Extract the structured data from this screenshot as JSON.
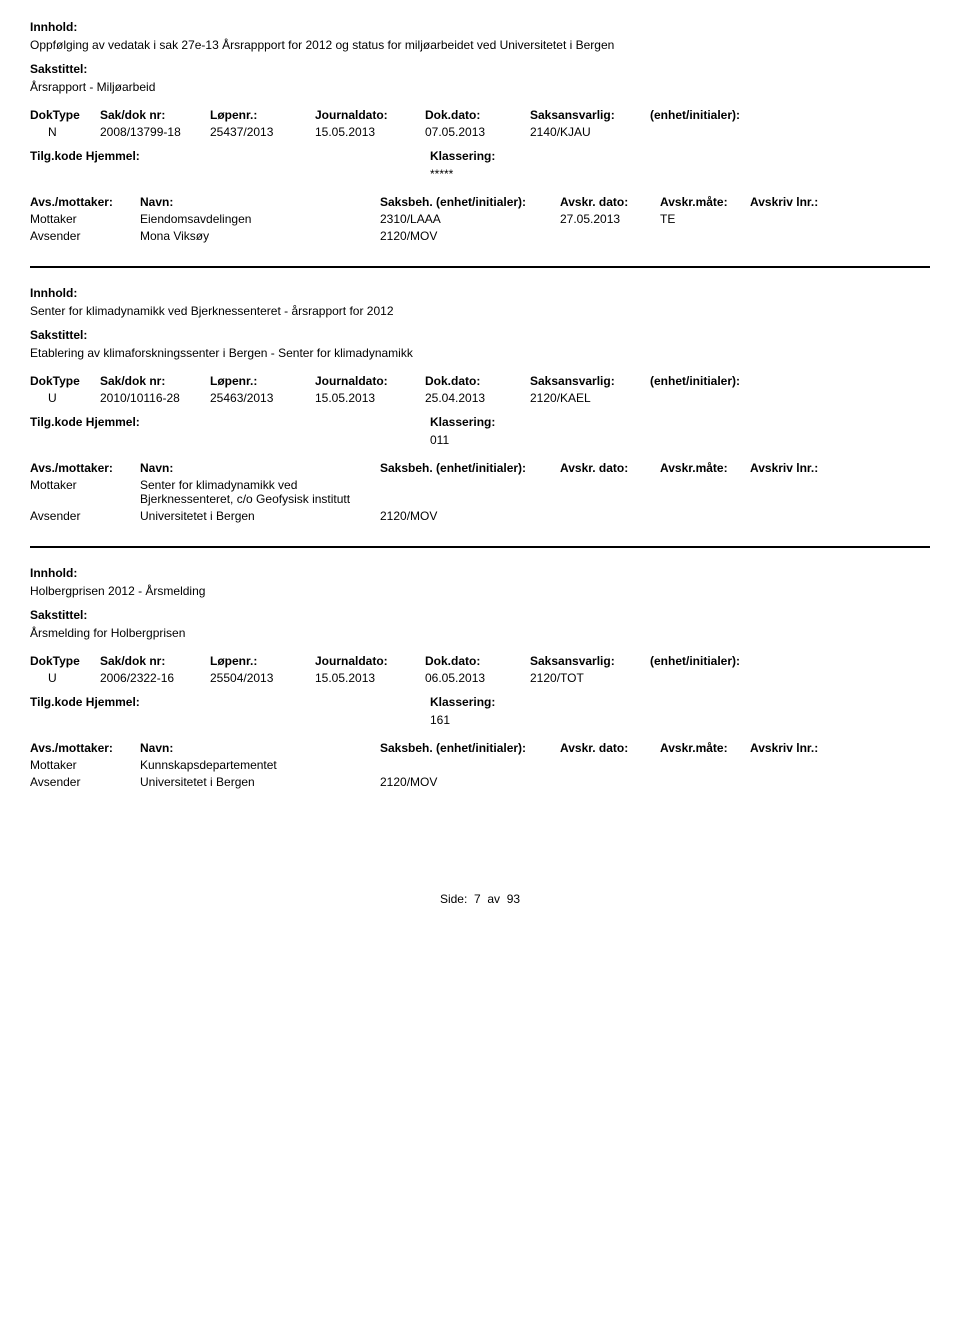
{
  "labels": {
    "innhold": "Innhold:",
    "sakstittel": "Sakstittel:",
    "doktype": "DokType",
    "sakdok": "Sak/dok nr:",
    "lopenr": "Løpenr.:",
    "journaldato": "Journaldato:",
    "dokdato": "Dok.dato:",
    "saksansvarlig": "Saksansvarlig:",
    "enhet": "(enhet/initialer):",
    "tilgkode": "Tilg.kode",
    "hjemmel": "Hjemmel:",
    "klassering": "Klassering:",
    "avsmottaker": "Avs./mottaker:",
    "navn": "Navn:",
    "saksbeh": "Saksbeh.",
    "saksbeh_enhet": "(enhet/initialer):",
    "avskrdato": "Avskr. dato:",
    "avskrmate": "Avskr.måte:",
    "avskrivlnr": "Avskriv lnr.:",
    "mottaker": "Mottaker",
    "avsender": "Avsender"
  },
  "records": [
    {
      "innhold": "Oppfølging av vedatak i sak 27e-13 Årsrappport for 2012 og status for miljøarbeidet ved Universitetet i Bergen",
      "sakstittel": "Årsrapport -  Miljøarbeid",
      "doktype": "N",
      "sakdok": "2008/13799-18",
      "lopenr": "25437/2013",
      "journaldato": "15.05.2013",
      "dokdato": "07.05.2013",
      "saksansvarlig": "2140/KJAU",
      "klassering": "*****",
      "parties": [
        {
          "role": "Mottaker",
          "navn": "Eiendomsavdelingen",
          "saksbeh": "2310/LAAA",
          "avskrdato": "27.05.2013",
          "avskrmate": "TE"
        },
        {
          "role": "Avsender",
          "navn": "Mona Viksøy",
          "saksbeh": "2120/MOV",
          "avskrdato": "",
          "avskrmate": ""
        }
      ]
    },
    {
      "innhold": "Senter for klimadynamikk ved Bjerknessenteret - årsrapport for 2012",
      "sakstittel": "Etablering av klimaforskningssenter i Bergen - Senter for klimadynamikk",
      "doktype": "U",
      "sakdok": "2010/10116-28",
      "lopenr": "25463/2013",
      "journaldato": "15.05.2013",
      "dokdato": "25.04.2013",
      "saksansvarlig": "2120/KAEL",
      "klassering": "011",
      "parties": [
        {
          "role": "Mottaker",
          "navn": "Senter for klimadynamikk ved Bjerknessenteret, c/o Geofysisk institutt",
          "saksbeh": "",
          "avskrdato": "",
          "avskrmate": ""
        },
        {
          "role": "Avsender",
          "navn": "Universitetet i Bergen",
          "saksbeh": "2120/MOV",
          "avskrdato": "",
          "avskrmate": ""
        }
      ]
    },
    {
      "innhold": "Holbergprisen 2012 - Årsmelding",
      "sakstittel": "Årsmelding for Holbergprisen",
      "doktype": "U",
      "sakdok": "2006/2322-16",
      "lopenr": "25504/2013",
      "journaldato": "15.05.2013",
      "dokdato": "06.05.2013",
      "saksansvarlig": "2120/TOT",
      "klassering": "161",
      "parties": [
        {
          "role": "Mottaker",
          "navn": "Kunnskapsdepartementet",
          "saksbeh": "",
          "avskrdato": "",
          "avskrmate": ""
        },
        {
          "role": "Avsender",
          "navn": "Universitetet i Bergen",
          "saksbeh": "2120/MOV",
          "avskrdato": "",
          "avskrmate": ""
        }
      ]
    }
  ],
  "footer": {
    "side": "Side:",
    "page": "7",
    "av": "av",
    "total": "93"
  }
}
